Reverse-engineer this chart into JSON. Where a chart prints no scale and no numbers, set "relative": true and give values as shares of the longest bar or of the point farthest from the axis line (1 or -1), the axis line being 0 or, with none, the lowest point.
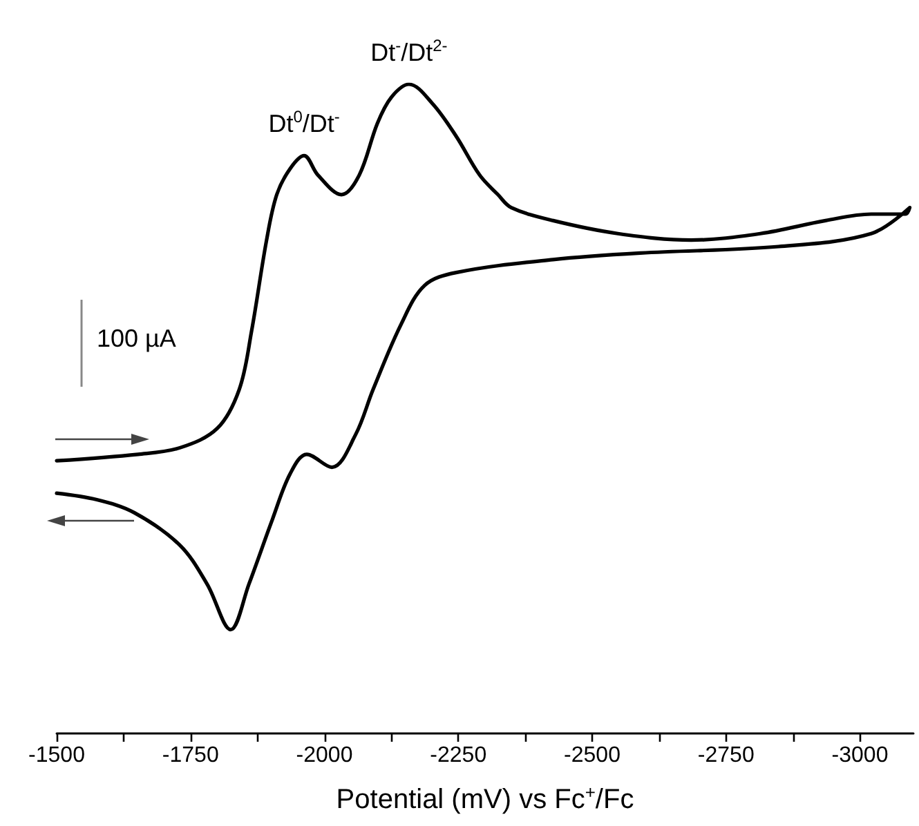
{
  "chart_data": {
    "type": "line",
    "relative": true,
    "xlabel": "Potential (mV) vs Fc$^{+}$/Fc",
    "xlim": [
      -1500,
      -3100
    ],
    "xticks": [
      -1500,
      {
        "value": -1625,
        "label": null
      },
      -1750,
      {
        "value": -1875,
        "label": null
      },
      -2000,
      {
        "value": -2125,
        "label": null
      },
      -2250,
      {
        "value": -2375,
        "label": null
      },
      -2500,
      {
        "value": -2625,
        "label": null
      },
      -2750,
      {
        "value": -2875,
        "label": null
      },
      -3000
    ],
    "tick_labels": "x",
    "grid": false,
    "marker": "none",
    "line_style": "solid",
    "series": [
      {
        "color": "#000000",
        "x": [
          -1500,
          -1652,
          -1730,
          -1800,
          -1841,
          -1864,
          -1892,
          -1911,
          -1936,
          -1962,
          -1988,
          -2032,
          -2065,
          -2099,
          -2125,
          -2158,
          -2202,
          -2246,
          -2290,
          -2324,
          -2349,
          -2427,
          -2548,
          -2685,
          -2814,
          -2936,
          -3021,
          -3085,
          -3093,
          -3021,
          -2848,
          -2590,
          -2427,
          -2246,
          -2187,
          -2143,
          -2091,
          -2058,
          -2014,
          -1967,
          -1936,
          -1903,
          -1859,
          -1825,
          -1781,
          -1730,
          -1645,
          -1575,
          -1500
        ],
        "values": [
          0.42,
          0.43,
          0.44,
          0.47,
          0.53,
          0.62,
          0.76,
          0.83,
          0.87,
          0.89,
          0.86,
          0.83,
          0.86,
          0.94,
          0.98,
          1.0,
          0.97,
          0.92,
          0.86,
          0.83,
          0.81,
          0.79,
          0.77,
          0.76,
          0.77,
          0.79,
          0.8,
          0.8,
          0.81,
          0.77,
          0.75,
          0.74,
          0.73,
          0.71,
          0.69,
          0.63,
          0.53,
          0.46,
          0.41,
          0.43,
          0.4,
          0.33,
          0.23,
          0.16,
          0.23,
          0.29,
          0.34,
          0.36,
          0.37
        ]
      }
    ],
    "annotations": [
      {
        "text": "Dt$^{0}$/Dt$^{-}$",
        "x": -1962,
        "y": 0.89
      },
      {
        "text": "Dt$^{-}$/Dt$^{2-}$",
        "x": -2158,
        "y": 1.0
      },
      "100 µA"
    ]
  }
}
